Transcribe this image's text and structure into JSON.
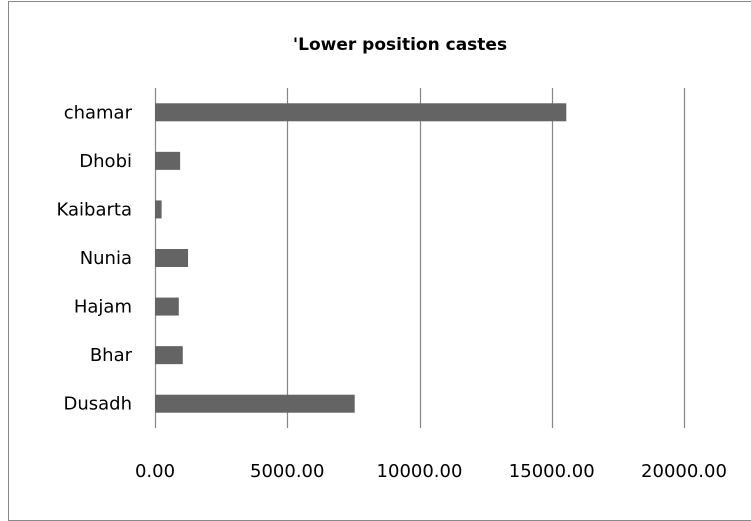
{
  "chart_data": {
    "type": "bar",
    "orientation": "horizontal",
    "title": "'Lower position castes",
    "xlabel": "",
    "ylabel": "",
    "categories": [
      "chamar",
      "Dhobi",
      "Kaibarta",
      "Nunia",
      "Hajam",
      "Bhar",
      "Dusadh"
    ],
    "values": [
      15550,
      950,
      250,
      1250,
      900,
      1050,
      7550
    ],
    "xlim": [
      0,
      20000
    ],
    "x_ticks": [
      0,
      5000,
      10000,
      15000,
      20000
    ],
    "x_tick_labels": [
      "0.00",
      "5000.00",
      "10000.00",
      "15000.00",
      "20000.00"
    ],
    "grid": "vertical gridlines",
    "legend": "none",
    "bar_color": "#646464",
    "grid_color": "#868686"
  }
}
